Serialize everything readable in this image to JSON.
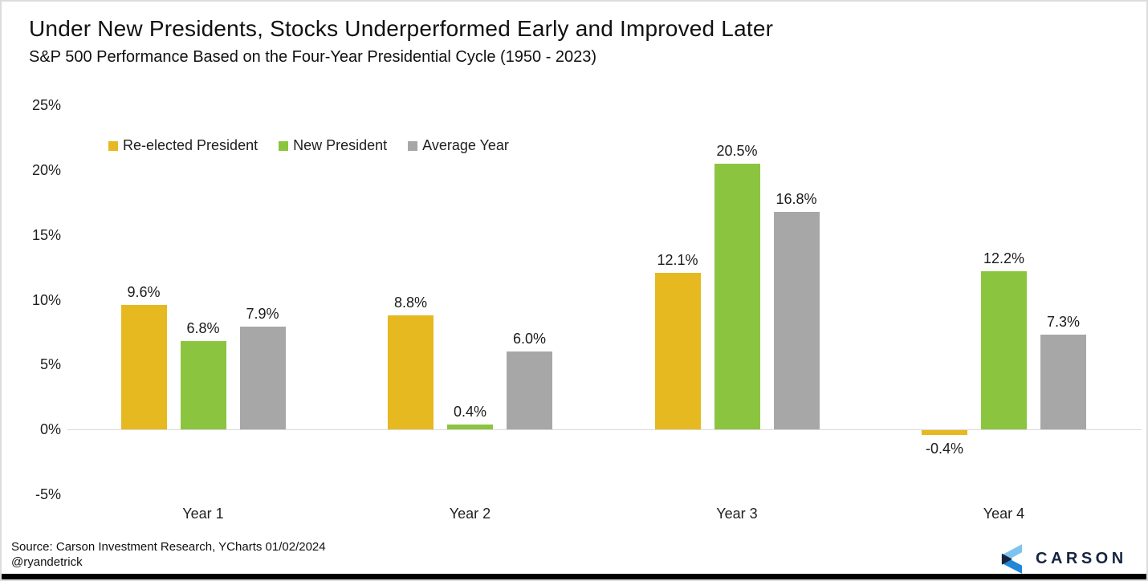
{
  "header": {
    "title": "Under New Presidents, Stocks Underperformed Early and Improved Later",
    "subtitle": "S&P 500 Performance Based on the Four-Year Presidential Cycle (1950 - 2023)"
  },
  "chart_data": {
    "type": "bar",
    "title": "Under New Presidents, Stocks Underperformed Early and Improved Later",
    "subtitle": "S&P 500 Performance Based on the Four-Year Presidential Cycle (1950 - 2023)",
    "categories": [
      "Year 1",
      "Year 2",
      "Year 3",
      "Year 4"
    ],
    "series": [
      {
        "name": "Re-elected President",
        "color": "#E5B91F",
        "values": [
          9.6,
          8.8,
          12.1,
          -0.4
        ],
        "labels": [
          "9.6%",
          "8.8%",
          "12.1%",
          "-0.4%"
        ]
      },
      {
        "name": "New President",
        "color": "#8BC540",
        "values": [
          6.8,
          0.4,
          20.5,
          12.2
        ],
        "labels": [
          "6.8%",
          "0.4%",
          "20.5%",
          "12.2%"
        ]
      },
      {
        "name": "Average Year",
        "color": "#A7A7A7",
        "values": [
          7.9,
          6.0,
          16.8,
          7.3
        ],
        "labels": [
          "7.9%",
          "6.0%",
          "16.8%",
          "7.3%"
        ]
      }
    ],
    "ylim": [
      -5,
      25
    ],
    "yticks": [
      {
        "label": "25%",
        "value": 25
      },
      {
        "label": "20%",
        "value": 20
      },
      {
        "label": "15%",
        "value": 15
      },
      {
        "label": "10%",
        "value": 10
      },
      {
        "label": "5%",
        "value": 5
      },
      {
        "label": "0%",
        "value": 0
      },
      {
        "label": "-5%",
        "value": -5
      }
    ],
    "grid": "zero-line-only",
    "legend_position": "top-left-inside"
  },
  "footer": {
    "source_line1": "Source: Carson Investment Research, YCharts 01/02/2024",
    "source_line2": "@ryandetrick",
    "brand": "CARSON"
  },
  "colors": {
    "gold": "#E5B91F",
    "green": "#8BC540",
    "gray": "#A7A7A7",
    "navy": "#152540",
    "logo_light_blue": "#7DC3F0",
    "logo_blue": "#2187D8",
    "zero_line": "#D9D9D9",
    "bottom_bar": "#000000"
  }
}
